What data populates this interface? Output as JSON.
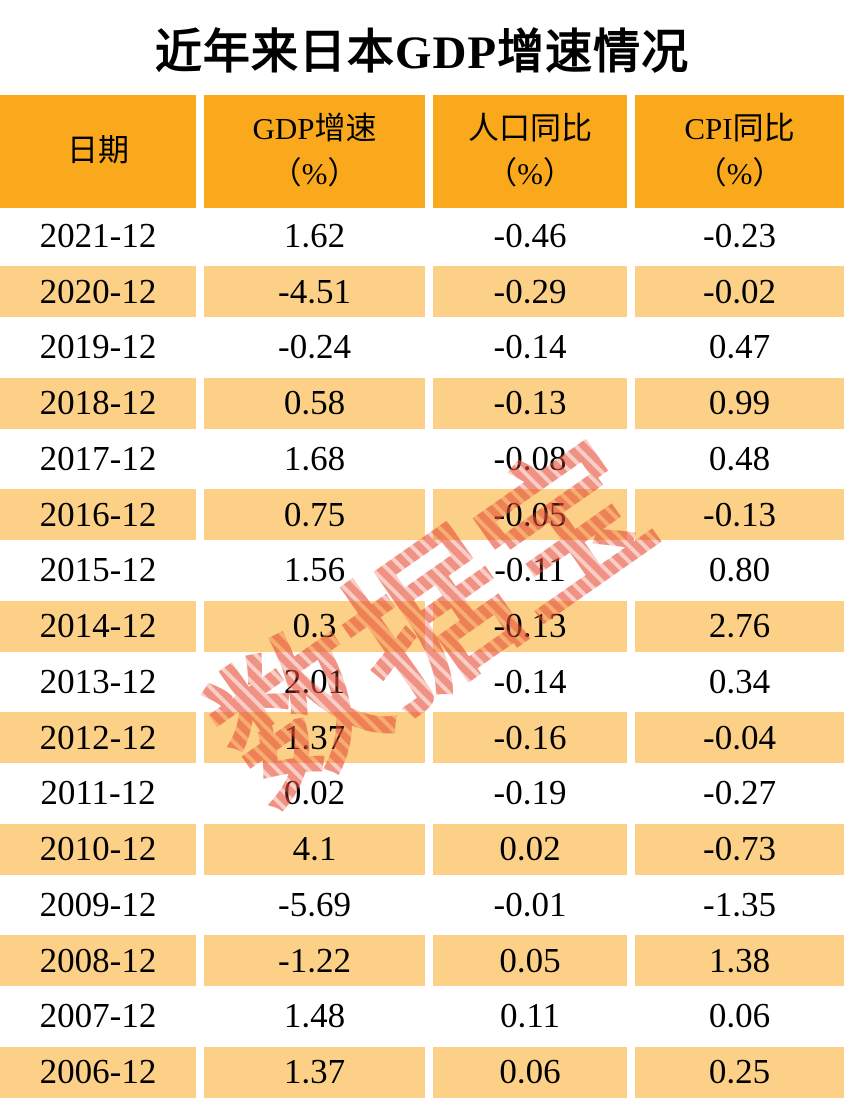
{
  "title": "近年来日本GDP增速情况",
  "watermark": "数据宝",
  "colors": {
    "header_bg": "#fba91c",
    "alt_row_bg": "#fcd187",
    "watermark_red": "#e64e37",
    "text": "#000000"
  },
  "table": {
    "columns": [
      {
        "label": "日期",
        "unit": ""
      },
      {
        "label": "GDP增速",
        "unit": "（%）"
      },
      {
        "label": "人口同比",
        "unit": "（%）"
      },
      {
        "label": "CPI同比",
        "unit": "（%）"
      }
    ],
    "rows": [
      {
        "date": "2021-12",
        "gdp": "1.62",
        "pop": "-0.46",
        "cpi": "-0.23"
      },
      {
        "date": "2020-12",
        "gdp": "-4.51",
        "pop": "-0.29",
        "cpi": "-0.02"
      },
      {
        "date": "2019-12",
        "gdp": "-0.24",
        "pop": "-0.14",
        "cpi": "0.47"
      },
      {
        "date": "2018-12",
        "gdp": "0.58",
        "pop": "-0.13",
        "cpi": "0.99"
      },
      {
        "date": "2017-12",
        "gdp": "1.68",
        "pop": "-0.08",
        "cpi": "0.48"
      },
      {
        "date": "2016-12",
        "gdp": "0.75",
        "pop": "-0.05",
        "cpi": "-0.13"
      },
      {
        "date": "2015-12",
        "gdp": "1.56",
        "pop": "-0.11",
        "cpi": "0.80"
      },
      {
        "date": "2014-12",
        "gdp": "0.3",
        "pop": "-0.13",
        "cpi": "2.76"
      },
      {
        "date": "2013-12",
        "gdp": "2.01",
        "pop": "-0.14",
        "cpi": "0.34"
      },
      {
        "date": "2012-12",
        "gdp": "1.37",
        "pop": "-0.16",
        "cpi": "-0.04"
      },
      {
        "date": "2011-12",
        "gdp": "0.02",
        "pop": "-0.19",
        "cpi": "-0.27"
      },
      {
        "date": "2010-12",
        "gdp": "4.1",
        "pop": "0.02",
        "cpi": "-0.73"
      },
      {
        "date": "2009-12",
        "gdp": "-5.69",
        "pop": "-0.01",
        "cpi": "-1.35"
      },
      {
        "date": "2008-12",
        "gdp": "-1.22",
        "pop": "0.05",
        "cpi": "1.38"
      },
      {
        "date": "2007-12",
        "gdp": "1.48",
        "pop": "0.11",
        "cpi": "0.06"
      },
      {
        "date": "2006-12",
        "gdp": "1.37",
        "pop": "0.06",
        "cpi": "0.25"
      }
    ]
  },
  "chart_data": {
    "type": "table",
    "title": "近年来日本GDP增速情况",
    "columns": [
      "日期",
      "GDP增速（%）",
      "人口同比（%）",
      "CPI同比（%）"
    ],
    "rows": [
      [
        "2021-12",
        1.62,
        -0.46,
        -0.23
      ],
      [
        "2020-12",
        -4.51,
        -0.29,
        -0.02
      ],
      [
        "2019-12",
        -0.24,
        -0.14,
        0.47
      ],
      [
        "2018-12",
        0.58,
        -0.13,
        0.99
      ],
      [
        "2017-12",
        1.68,
        -0.08,
        0.48
      ],
      [
        "2016-12",
        0.75,
        -0.05,
        -0.13
      ],
      [
        "2015-12",
        1.56,
        -0.11,
        0.8
      ],
      [
        "2014-12",
        0.3,
        -0.13,
        2.76
      ],
      [
        "2013-12",
        2.01,
        -0.14,
        0.34
      ],
      [
        "2012-12",
        1.37,
        -0.16,
        -0.04
      ],
      [
        "2011-12",
        0.02,
        -0.19,
        -0.27
      ],
      [
        "2010-12",
        4.1,
        0.02,
        -0.73
      ],
      [
        "2009-12",
        -5.69,
        -0.01,
        -1.35
      ],
      [
        "2008-12",
        -1.22,
        0.05,
        1.38
      ],
      [
        "2007-12",
        1.48,
        0.11,
        0.06
      ],
      [
        "2006-12",
        1.37,
        0.06,
        0.25
      ]
    ],
    "layout": {
      "row_striping": "alternate white / light-orange",
      "header_bg": "#fba91c",
      "watermark_text": "数据宝"
    }
  }
}
